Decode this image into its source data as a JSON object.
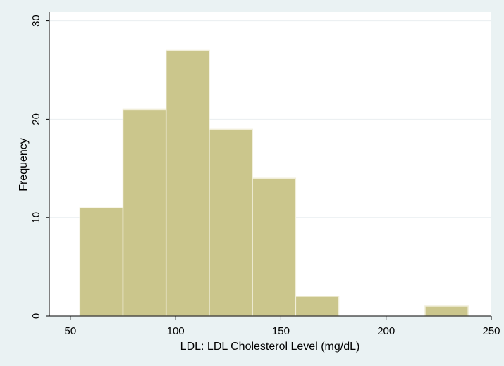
{
  "chart_data": {
    "type": "bar",
    "title": "",
    "xlabel": "LDL: LDL Cholesterol Level (mg/dL)",
    "ylabel": "Frequency",
    "xlim": [
      40,
      250
    ],
    "ylim": [
      0,
      30
    ],
    "xticks": [
      50,
      100,
      150,
      200,
      250
    ],
    "yticks": [
      0,
      10,
      20,
      30
    ],
    "grid": true,
    "legend": "none",
    "bins": [
      {
        "start": 54.5,
        "end": 75,
        "value": 11
      },
      {
        "start": 75,
        "end": 95.5,
        "value": 21
      },
      {
        "start": 95.5,
        "end": 116,
        "value": 27
      },
      {
        "start": 116,
        "end": 136.5,
        "value": 19
      },
      {
        "start": 136.5,
        "end": 157,
        "value": 14
      },
      {
        "start": 157,
        "end": 177.5,
        "value": 2
      },
      {
        "start": 177.5,
        "end": 198,
        "value": 0
      },
      {
        "start": 198,
        "end": 218.5,
        "value": 0
      },
      {
        "start": 218.5,
        "end": 239,
        "value": 1
      }
    ],
    "colors": {
      "bar_fill": "#cbc68c",
      "bar_edge": "#f1eed9",
      "grid": "#e9eef0",
      "background": "#eaf2f3",
      "plot_background": "#ffffff"
    }
  }
}
